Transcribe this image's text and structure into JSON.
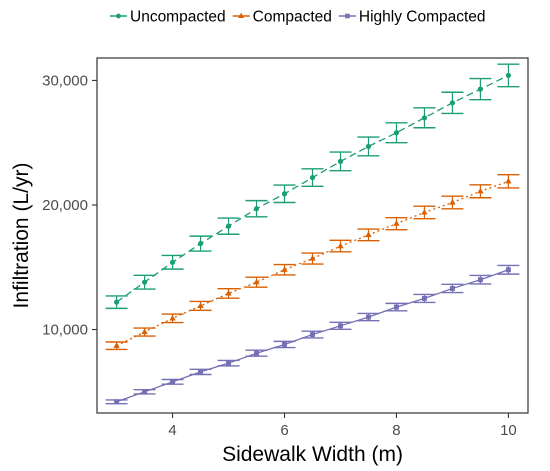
{
  "chart_data": {
    "type": "line",
    "title": "",
    "xlabel": "Sidewalk Width (m)",
    "ylabel": "Infiltration (L/yr)",
    "xlim": [
      2.65,
      10.35
    ],
    "ylim": [
      3300,
      31800
    ],
    "x_ticks": [
      4,
      6,
      8,
      10
    ],
    "x_tick_labels": [
      "4",
      "6",
      "8",
      "10"
    ],
    "y_ticks": [
      10000,
      20000,
      30000
    ],
    "y_tick_labels": [
      "10,000",
      "20,000",
      "30,000"
    ],
    "grid": false,
    "legend_position": "top",
    "x": [
      3,
      3.5,
      4,
      4.5,
      5,
      5.5,
      6,
      6.5,
      7,
      7.5,
      8,
      8.5,
      9,
      9.5,
      10
    ],
    "series": [
      {
        "name": "Uncompacted",
        "color": "#1b9e77",
        "marker": "circle",
        "line_style": "dashed",
        "values": [
          12200,
          13800,
          15400,
          16900,
          18300,
          19700,
          20900,
          22200,
          23500,
          24700,
          25800,
          27000,
          28200,
          29300,
          30400
        ],
        "error": [
          500,
          550,
          550,
          600,
          650,
          650,
          700,
          700,
          750,
          750,
          800,
          800,
          850,
          850,
          900
        ]
      },
      {
        "name": "Compacted",
        "color": "#d95f02",
        "marker": "triangle",
        "line_style": "dotted",
        "values": [
          8700,
          9800,
          10900,
          11900,
          12900,
          13800,
          14800,
          15700,
          16700,
          17600,
          18500,
          19400,
          20200,
          21100,
          21900
        ],
        "error": [
          300,
          320,
          340,
          360,
          380,
          400,
          420,
          440,
          460,
          470,
          480,
          500,
          510,
          520,
          530
        ]
      },
      {
        "name": "Highly Compacted",
        "color": "#7570b3",
        "marker": "square",
        "line_style": "solid",
        "values": [
          4200,
          5000,
          5800,
          6600,
          7300,
          8100,
          8800,
          9600,
          10300,
          11000,
          11800,
          12500,
          13300,
          14000,
          14800
        ],
        "error": [
          150,
          170,
          190,
          210,
          220,
          240,
          250,
          270,
          280,
          290,
          300,
          320,
          330,
          340,
          350
        ]
      }
    ]
  }
}
